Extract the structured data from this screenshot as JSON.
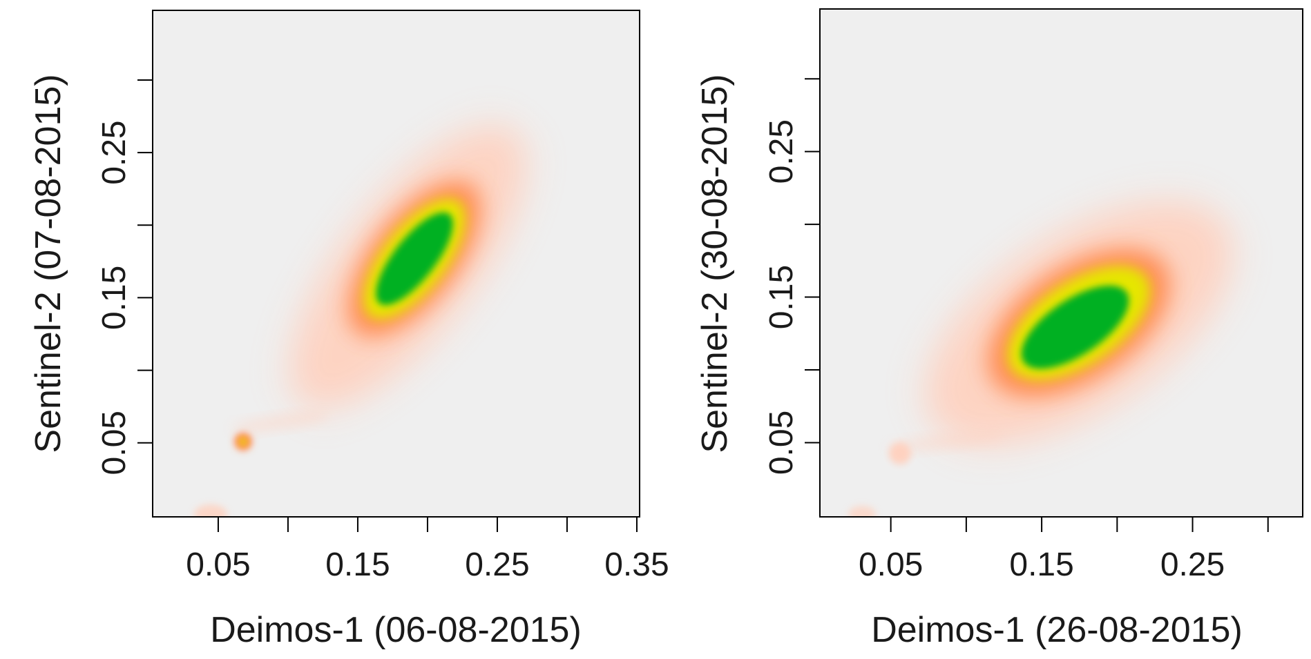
{
  "colors": {
    "background": "#efefef",
    "low": "#ffd0be",
    "mid": "#ff8a50",
    "yellow": "#e6e600",
    "high": "#00b020"
  },
  "chart_data": [
    {
      "type": "heatmap",
      "title": "",
      "xlabel": "Deimos-1 (06-08-2015)",
      "ylabel": "Sentinel-2 (07-08-2015)",
      "xlim": [
        0.003,
        0.352
      ],
      "ylim": [
        -0.001,
        0.348
      ],
      "x_ticks": [
        0.05,
        0.1,
        0.15,
        0.2,
        0.25,
        0.3,
        0.35
      ],
      "x_tick_labels": [
        "0.05",
        "",
        "0.15",
        "",
        "0.25",
        "",
        "0.35"
      ],
      "y_ticks": [
        0.05,
        0.1,
        0.15,
        0.2,
        0.25,
        0.3
      ],
      "y_tick_labels": [
        "0.05",
        "",
        "0.15",
        "",
        "0.25",
        ""
      ],
      "grid": false,
      "density_peaks": [
        {
          "x": 0.185,
          "y": 0.165,
          "level": "high"
        },
        {
          "x": 0.068,
          "y": 0.052,
          "level": "mid"
        },
        {
          "x": 0.045,
          "y": 0.002,
          "level": "low"
        }
      ]
    },
    {
      "type": "heatmap",
      "title": "",
      "xlabel": "Deimos-1 (26-08-2015)",
      "ylabel": "Sentinel-2 (30-08-2015)",
      "xlim": [
        0.003,
        0.323
      ],
      "ylim": [
        -0.001,
        0.348
      ],
      "x_ticks": [
        0.05,
        0.1,
        0.15,
        0.2,
        0.25,
        0.3
      ],
      "x_tick_labels": [
        "0.05",
        "",
        "0.15",
        "",
        "0.25",
        ""
      ],
      "y_ticks": [
        0.05,
        0.1,
        0.15,
        0.2,
        0.25,
        0.3
      ],
      "y_tick_labels": [
        "0.05",
        "",
        "0.15",
        "",
        "0.25",
        ""
      ],
      "grid": false,
      "density_peaks": [
        {
          "x": 0.198,
          "y": 0.132,
          "level": "high"
        },
        {
          "x": 0.062,
          "y": 0.042,
          "level": "low"
        },
        {
          "x": 0.033,
          "y": 0.003,
          "level": "low"
        }
      ]
    }
  ]
}
